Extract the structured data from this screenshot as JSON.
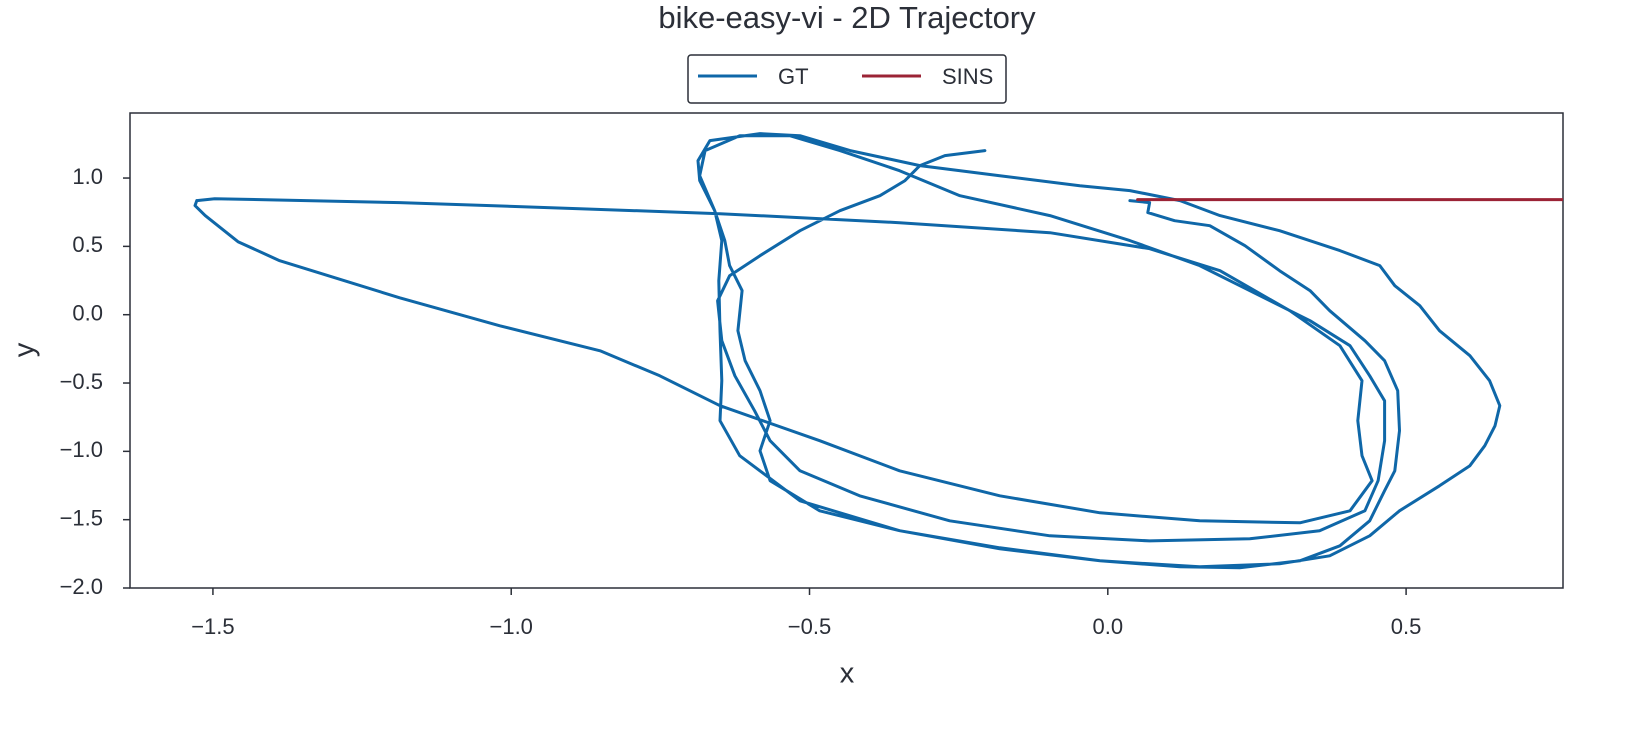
{
  "chart_data": {
    "type": "line",
    "title": "bike-easy-vi - 2D Trajectory",
    "x_label": "x",
    "y_label": "y",
    "legend_position": "upper center",
    "xlim": [
      -1.639,
      0.763
    ],
    "ylim": [
      -2.0,
      1.476
    ],
    "xticks": [
      {
        "value": -1.5,
        "label": "−1.5"
      },
      {
        "value": -1.0,
        "label": "−1.0"
      },
      {
        "value": -0.5,
        "label": "−0.5"
      },
      {
        "value": 0.0,
        "label": "0.0"
      },
      {
        "value": 0.5,
        "label": "0.5"
      }
    ],
    "yticks": [
      {
        "value": 1.0,
        "label": "1.0"
      },
      {
        "value": 0.5,
        "label": "0.5"
      },
      {
        "value": 0.0,
        "label": "0.0"
      },
      {
        "value": -0.5,
        "label": "−0.5"
      },
      {
        "value": -1.0,
        "label": "−1.0"
      },
      {
        "value": -1.5,
        "label": "−1.5"
      },
      {
        "value": -2.0,
        "label": "−2.0"
      }
    ],
    "series": [
      {
        "name": "GT",
        "color": "#0f67a8",
        "x": [
          0.037,
          0.07,
          0.067,
          0.112,
          0.171,
          0.23,
          0.288,
          0.339,
          0.372,
          0.431,
          0.464,
          0.486,
          0.489,
          0.481,
          0.464,
          0.439,
          0.389,
          0.322,
          0.221,
          0.121,
          -0.013,
          -0.181,
          -0.349,
          -0.483,
          -0.566,
          -0.583,
          -0.566,
          -0.583,
          -0.608,
          -0.62,
          -0.613,
          -0.634,
          -0.642,
          -0.659,
          -0.684,
          -0.687,
          -0.667,
          -0.583,
          -0.516,
          -0.432,
          -0.315,
          -0.181,
          -0.047,
          0.037,
          0.121,
          0.188,
          0.288,
          0.389,
          0.456,
          0.481,
          0.523,
          0.556,
          0.607,
          0.64,
          0.657,
          0.649,
          0.632,
          0.607,
          0.556,
          0.489,
          0.439,
          0.372,
          0.288,
          0.154,
          -0.013,
          -0.181,
          -0.349,
          -0.516,
          -0.617,
          -0.65,
          -0.647,
          -0.65,
          -0.652,
          -0.647,
          -0.659,
          -0.684,
          -0.675,
          -0.617,
          -0.533,
          -0.449,
          -0.349,
          -0.248,
          -0.097,
          0.037,
          0.154,
          0.255,
          0.339,
          0.406,
          0.439,
          0.464,
          0.464,
          0.453,
          0.431,
          0.355,
          0.238,
          0.07,
          -0.097,
          -0.265,
          -0.416,
          -0.516,
          -0.566,
          -0.592,
          -0.625,
          -0.647,
          -0.654,
          -0.634,
          -0.583,
          -0.516,
          -0.449,
          -0.382,
          -0.34,
          -0.315,
          -0.273,
          -0.206,
          null,
          -1.527,
          -1.497,
          -1.187,
          -0.885,
          -0.65,
          -0.349,
          -0.097,
          0.07,
          0.188,
          0.305,
          0.389,
          0.426,
          0.419,
          0.426,
          0.443,
          0.406,
          0.322,
          0.154,
          -0.013,
          -0.181,
          -0.349,
          -0.483,
          -0.65,
          -0.751,
          -0.851,
          -1.019,
          -1.187,
          -1.388,
          -1.458,
          -1.513,
          -1.53,
          -1.527
        ],
        "values": [
          0.835,
          0.82,
          0.747,
          0.688,
          0.651,
          0.505,
          0.322,
          0.176,
          0.029,
          -0.19,
          -0.337,
          -0.556,
          -0.849,
          -1.142,
          -1.288,
          -1.508,
          -1.691,
          -1.801,
          -1.852,
          -1.845,
          -1.801,
          -1.706,
          -1.581,
          -1.435,
          -1.215,
          -0.996,
          -0.776,
          -0.556,
          -0.337,
          -0.117,
          0.176,
          0.359,
          0.542,
          0.761,
          0.981,
          1.127,
          1.274,
          1.325,
          1.31,
          1.201,
          1.091,
          1.017,
          0.944,
          0.908,
          0.835,
          0.725,
          0.615,
          0.469,
          0.359,
          0.212,
          0.066,
          -0.117,
          -0.3,
          -0.483,
          -0.666,
          -0.813,
          -0.959,
          -1.105,
          -1.252,
          -1.435,
          -1.618,
          -1.764,
          -1.823,
          -1.845,
          -1.801,
          -1.713,
          -1.581,
          -1.362,
          -1.032,
          -0.776,
          -0.483,
          -0.117,
          0.249,
          0.542,
          0.761,
          1.017,
          1.201,
          1.31,
          1.31,
          1.201,
          1.054,
          0.871,
          0.725,
          0.542,
          0.359,
          0.139,
          -0.044,
          -0.227,
          -0.447,
          -0.63,
          -0.922,
          -1.215,
          -1.435,
          -1.581,
          -1.64,
          -1.655,
          -1.618,
          -1.508,
          -1.325,
          -1.142,
          -0.922,
          -0.703,
          -0.447,
          -0.19,
          0.102,
          0.285,
          0.432,
          0.615,
          0.761,
          0.871,
          0.981,
          1.091,
          1.164,
          1.201,
          null,
          0.835,
          0.849,
          0.82,
          0.776,
          0.739,
          0.673,
          0.6,
          0.483,
          0.322,
          0.029,
          -0.227,
          -0.483,
          -0.776,
          -1.032,
          -1.215,
          -1.435,
          -1.523,
          -1.508,
          -1.45,
          -1.325,
          -1.142,
          -0.922,
          -0.666,
          -0.447,
          -0.264,
          -0.081,
          0.124,
          0.395,
          0.534,
          0.725,
          0.798,
          0.835
        ]
      },
      {
        "name": "SINS",
        "color": "#9b2335",
        "x": [
          0.05,
          0.763
        ],
        "values": [
          0.842,
          0.842
        ]
      }
    ]
  }
}
